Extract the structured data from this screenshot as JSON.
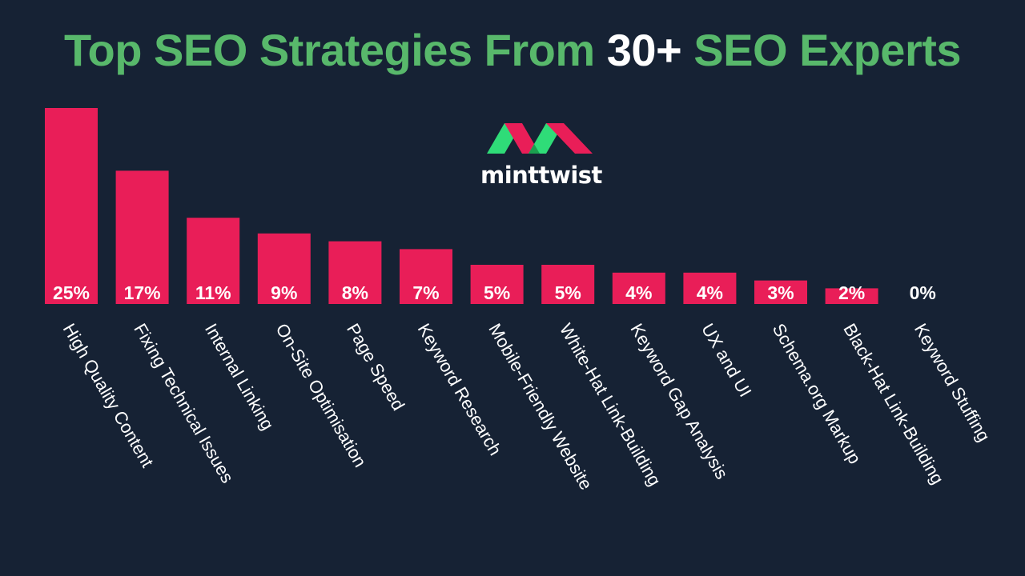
{
  "title": {
    "part1": "Top SEO Strategies From ",
    "part2": "30+",
    "part3": " SEO Experts"
  },
  "brand": {
    "name": "minttwist",
    "colors": {
      "pink": "#e91e58",
      "green": "#2fdc78",
      "dark_green": "#1b9e4f"
    }
  },
  "colors": {
    "background": "#162234",
    "title_green": "#58b86b",
    "bar": "#e91e58",
    "text": "#ffffff"
  },
  "chart_data": {
    "type": "bar",
    "title": "Top SEO Strategies From 30+ SEO Experts",
    "categories": [
      "High Quality Content",
      "Fixing Technical Issues",
      "Internal Linking",
      "On-Site Optimisation",
      "Page Speed",
      "Keyword Research",
      "Mobile-Friendly Website",
      "White-Hat Link-Building",
      "Keyword Gap Analysis",
      "UX and UI",
      "Schema.org Markup",
      "Black-Hat Link-Building",
      "Keyword Stuffing"
    ],
    "values": [
      25,
      17,
      11,
      9,
      8,
      7,
      5,
      5,
      4,
      4,
      3,
      2,
      0
    ],
    "value_labels": [
      "25%",
      "17%",
      "11%",
      "9%",
      "8%",
      "7%",
      "5%",
      "5%",
      "4%",
      "4%",
      "3%",
      "2%",
      "0%"
    ],
    "xlabel": "",
    "ylabel": "",
    "grid": false,
    "legend": "none"
  }
}
